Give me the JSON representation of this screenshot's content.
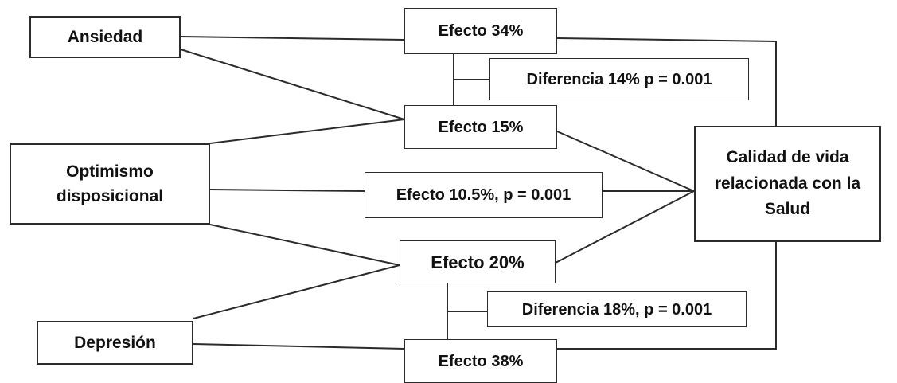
{
  "diagram": {
    "nodes": {
      "ansiedad": "Ansiedad",
      "optimismo": "Optimismo\ndisposicional",
      "depresion": "Depresión",
      "calidad": "Calidad de vida\nrelacionada con la\nSalud",
      "efecto34": "Efecto 34%",
      "efecto15": "Efecto 15%",
      "efecto105": "Efecto 10.5%, p = 0.001",
      "efecto20": "Efecto 20%",
      "efecto38": "Efecto 38%",
      "diferencia14": "Diferencia 14% p = 0.001",
      "diferencia18": "Diferencia 18%, p = 0.001"
    },
    "colors": {
      "line": "#2b2b2b",
      "text": "#111111",
      "background": "#ffffff"
    }
  }
}
